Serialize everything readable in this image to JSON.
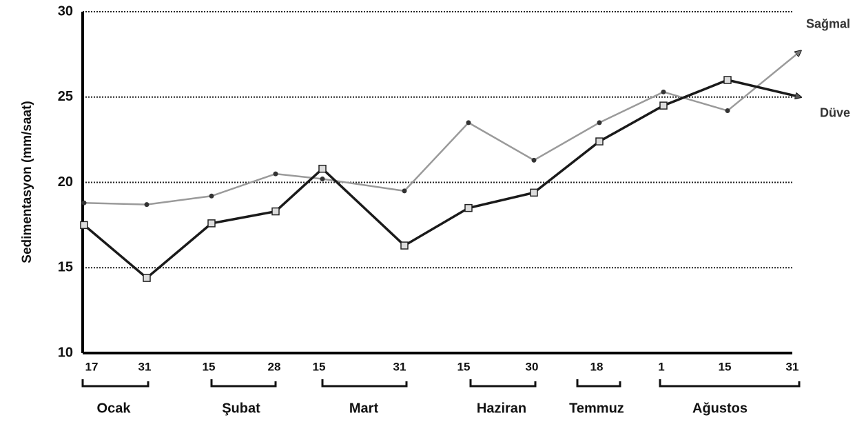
{
  "chart_data": {
    "type": "line",
    "y_label": "Sedimentasyon (mm/saat)",
    "categories": [
      "17",
      "31",
      "15",
      "28",
      "15",
      "31",
      "15",
      "30",
      "18",
      "1",
      "15",
      "31"
    ],
    "months": [
      "Ocak",
      "Şubat",
      "Mart",
      "Haziran",
      "Temmuz",
      "Ağustos"
    ],
    "series": [
      {
        "name": "Sağmal",
        "color": "#9a9a9a",
        "marker": "circle",
        "values": [
          18.8,
          18.7,
          19.2,
          20.5,
          20.2,
          19.5,
          23.5,
          21.3,
          23.5,
          25.3,
          24.2,
          27.7
        ]
      },
      {
        "name": "Düve",
        "color": "#1a1a1a",
        "marker": "square",
        "values": [
          17.5,
          14.4,
          17.6,
          18.3,
          20.8,
          16.3,
          18.5,
          19.4,
          22.4,
          24.5,
          26.0,
          25.0
        ]
      }
    ],
    "ylim": [
      10,
      30
    ],
    "yticks": [
      10,
      15,
      20,
      25,
      30
    ],
    "grid": true
  }
}
